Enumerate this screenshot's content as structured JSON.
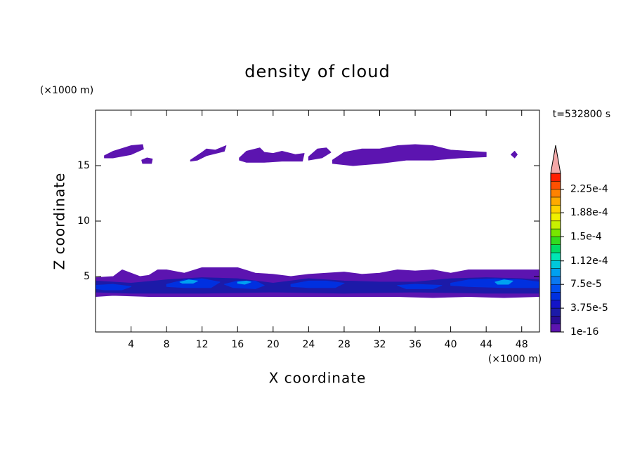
{
  "chart_data": {
    "type": "contour",
    "title": "density of cloud",
    "x_label": "X coordinate",
    "y_label": "Z coordinate",
    "x_unit": "(×1000 m)",
    "y_unit": "(×1000 m)",
    "time_label": "t=532800 s",
    "xlim": [
      0,
      50
    ],
    "ylim": [
      0,
      20
    ],
    "xticks": [
      4,
      8,
      12,
      16,
      20,
      24,
      28,
      32,
      36,
      40,
      44,
      48
    ],
    "yticks": [
      5,
      10,
      15
    ],
    "colorbar": {
      "lim": [
        1e-16,
        0.00025
      ],
      "ticks": [
        {
          "value": 1e-16,
          "label": "1e-16"
        },
        {
          "value": 3.75e-05,
          "label": "3.75e-5"
        },
        {
          "value": 7.5e-05,
          "label": "7.5e-5"
        },
        {
          "value": 0.000112,
          "label": "1.12e-4"
        },
        {
          "value": 0.00015,
          "label": "1.5e-4"
        },
        {
          "value": 0.000188,
          "label": "1.88e-4"
        },
        {
          "value": 0.000225,
          "label": "2.25e-4"
        }
      ],
      "colors": [
        "#5c14b0",
        "#2a0c96",
        "#1c1aa8",
        "#1414c8",
        "#0030e0",
        "#0050f0",
        "#0a78f0",
        "#00a0f0",
        "#00c8dc",
        "#00e6b4",
        "#00dc64",
        "#32dc1e",
        "#78e600",
        "#c8f000",
        "#f0f000",
        "#ffd200",
        "#ffaa00",
        "#ff8200",
        "#ff5000",
        "#ff1e00"
      ],
      "extend_color": "#f4a8a8"
    },
    "regions": [
      {
        "level": 1e-16,
        "x": [
          0,
          2,
          3,
          4,
          5,
          6,
          7,
          8,
          10,
          12,
          14,
          16,
          18,
          20,
          22,
          24,
          26,
          28,
          30,
          32,
          34,
          36,
          38,
          40,
          42,
          44,
          46,
          48,
          50,
          50,
          46,
          42,
          38,
          34,
          30,
          26,
          22,
          18,
          14,
          10,
          6,
          2,
          0
        ],
        "z": [
          4.9,
          5.0,
          5.6,
          5.3,
          5.0,
          5.1,
          5.6,
          5.6,
          5.3,
          5.8,
          5.8,
          5.8,
          5.3,
          5.2,
          5.0,
          5.2,
          5.3,
          5.4,
          5.2,
          5.3,
          5.6,
          5.5,
          5.6,
          5.3,
          5.6,
          5.6,
          5.6,
          5.6,
          5.6,
          3.2,
          3.1,
          3.2,
          3.1,
          3.2,
          3.2,
          3.2,
          3.2,
          3.2,
          3.2,
          3.2,
          3.2,
          3.3,
          3.2
        ]
      },
      {
        "level": 3e-05,
        "x": [
          0,
          4,
          8,
          12,
          16,
          20,
          24,
          28,
          32,
          36,
          40,
          44,
          48,
          50,
          50,
          44,
          36,
          28,
          20,
          12,
          4,
          0
        ],
        "z": [
          4.6,
          4.4,
          4.7,
          4.9,
          4.8,
          4.4,
          4.8,
          4.6,
          4.5,
          4.5,
          4.8,
          4.9,
          4.8,
          4.7,
          3.5,
          3.5,
          3.6,
          3.5,
          3.6,
          3.5,
          3.5,
          3.6
        ]
      },
      {
        "level": 6e-05,
        "x": [
          0,
          2,
          4,
          3,
          1,
          0
        ],
        "z": [
          4.2,
          4.3,
          4.1,
          3.8,
          3.8,
          3.9
        ]
      },
      {
        "level": 6e-05,
        "x": [
          8,
          10,
          12,
          14,
          13,
          10,
          8
        ],
        "z": [
          4.3,
          4.7,
          4.8,
          4.5,
          4.0,
          4.0,
          4.1
        ]
      },
      {
        "level": 6e-05,
        "x": [
          14.5,
          16,
          18,
          19,
          18,
          15.5
        ],
        "z": [
          4.3,
          4.6,
          4.6,
          4.2,
          3.9,
          4.0
        ]
      },
      {
        "level": 6e-05,
        "x": [
          22,
          24,
          26,
          28,
          27,
          24,
          22
        ],
        "z": [
          4.3,
          4.6,
          4.6,
          4.4,
          4.0,
          4.0,
          4.1
        ]
      },
      {
        "level": 6e-05,
        "x": [
          34,
          36,
          39,
          38,
          35
        ],
        "z": [
          4.2,
          4.3,
          4.2,
          3.9,
          3.9
        ]
      },
      {
        "level": 6e-05,
        "x": [
          40,
          42,
          45,
          48,
          50,
          50,
          46,
          42,
          40
        ],
        "z": [
          4.4,
          4.7,
          4.8,
          4.7,
          4.5,
          4.0,
          4.0,
          4.1,
          4.2
        ]
      },
      {
        "level": 0.0001,
        "x": [
          9.5,
          10.5,
          11.5,
          11,
          9.8
        ],
        "z": [
          4.5,
          4.7,
          4.6,
          4.4,
          4.4
        ]
      },
      {
        "level": 0.0001,
        "x": [
          16,
          17,
          17.5,
          16.8,
          16
        ],
        "z": [
          4.5,
          4.6,
          4.5,
          4.3,
          4.4
        ]
      },
      {
        "level": 0.0001,
        "x": [
          45,
          46,
          47,
          46.5,
          45.3
        ],
        "z": [
          4.5,
          4.7,
          4.6,
          4.3,
          4.3
        ]
      },
      {
        "level": 1e-16,
        "x": [
          1,
          2,
          4,
          5.3,
          5.4,
          4,
          2,
          1
        ],
        "z": [
          15.9,
          16.3,
          16.8,
          16.9,
          16.5,
          16.0,
          15.7,
          15.7
        ]
      },
      {
        "level": 1e-16,
        "x": [
          5.2,
          5.8,
          6.4,
          6.3,
          5.3
        ],
        "z": [
          15.5,
          15.7,
          15.6,
          15.2,
          15.2
        ]
      },
      {
        "level": 1e-16,
        "x": [
          10.7,
          12,
          12.5,
          13.5,
          14.7,
          14.5,
          12.5,
          11.5,
          10.7
        ],
        "z": [
          15.5,
          16.2,
          16.5,
          16.4,
          16.8,
          16.3,
          15.9,
          15.5,
          15.4
        ]
      },
      {
        "level": 1e-16,
        "x": [
          16.2,
          17,
          18.5,
          19,
          20,
          21,
          22.5,
          23.5,
          23.3,
          21,
          19,
          17,
          16.2
        ],
        "z": [
          15.7,
          16.3,
          16.6,
          16.2,
          16.1,
          16.3,
          16.0,
          16.1,
          15.4,
          15.4,
          15.3,
          15.3,
          15.5
        ]
      },
      {
        "level": 1e-16,
        "x": [
          24,
          25,
          26,
          26.5,
          25.5,
          24
        ],
        "z": [
          15.8,
          16.5,
          16.6,
          16.2,
          15.7,
          15.5
        ]
      },
      {
        "level": 1e-16,
        "x": [
          26.7,
          28,
          30,
          32,
          34,
          36,
          38,
          40,
          42,
          44,
          44,
          41,
          38,
          35,
          32,
          29,
          26.7
        ],
        "z": [
          15.5,
          16.2,
          16.5,
          16.5,
          16.8,
          16.9,
          16.8,
          16.4,
          16.3,
          16.2,
          15.8,
          15.7,
          15.5,
          15.5,
          15.2,
          15.0,
          15.2
        ]
      },
      {
        "level": 1e-16,
        "x": [
          46.8,
          47.2,
          47.5,
          47.2
        ],
        "z": [
          16.0,
          16.3,
          16.0,
          15.7
        ]
      }
    ]
  }
}
